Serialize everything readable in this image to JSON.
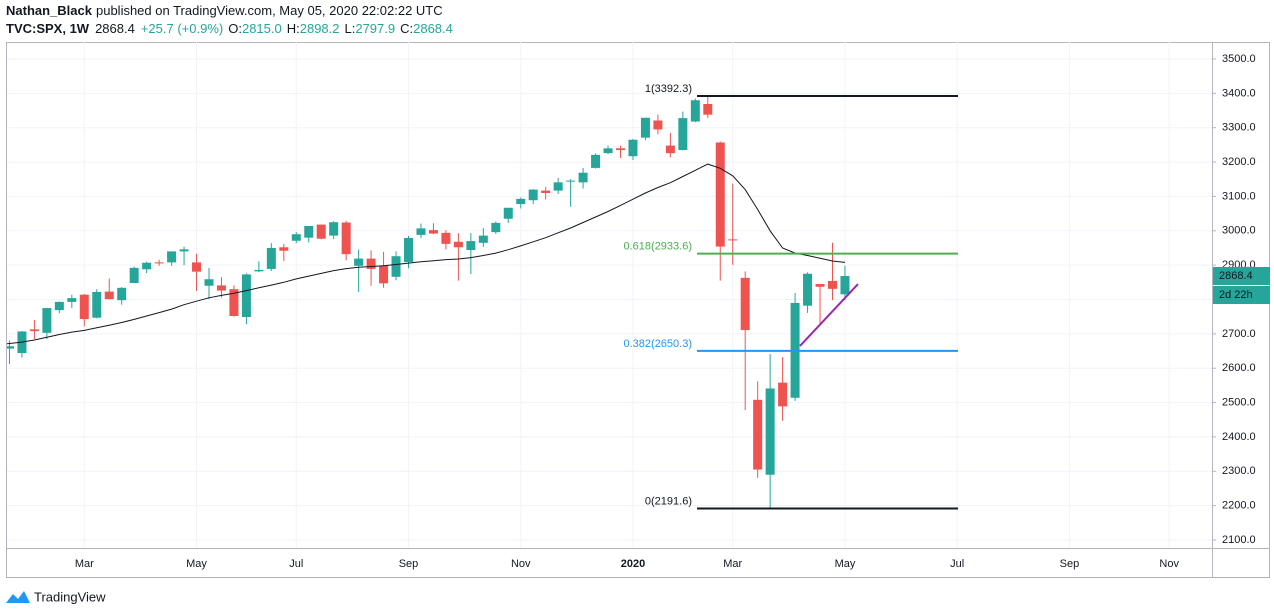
{
  "header": {
    "author": "Nathan_Black",
    "published": "published on TradingView.com, May 05, 2020 22:02:22 UTC",
    "symbol": "TVC:SPX, 1W",
    "last": "2868.4",
    "change": "+25.7 (+0.9%)",
    "ohlc": [
      {
        "key": "O:",
        "value": "2815.0"
      },
      {
        "key": "H:",
        "value": "2898.2"
      },
      {
        "key": "L:",
        "value": "2797.9"
      },
      {
        "key": "C:",
        "value": "2868.4"
      }
    ]
  },
  "chart_data": {
    "type": "candlestick",
    "categories": [
      null,
      null,
      null,
      null,
      null,
      null,
      null,
      "Mar",
      null,
      null,
      null,
      null,
      null,
      null,
      null,
      null,
      "May",
      null,
      null,
      null,
      null,
      null,
      null,
      null,
      "Jul",
      null,
      null,
      null,
      null,
      null,
      null,
      null,
      null,
      "Sep",
      null,
      null,
      null,
      null,
      null,
      null,
      null,
      null,
      "Nov",
      null,
      null,
      null,
      null,
      null,
      null,
      null,
      null,
      "2020",
      null,
      null,
      null,
      null,
      null,
      null,
      null,
      "Mar",
      null,
      null,
      null,
      null,
      null,
      null,
      null,
      null,
      "May",
      null,
      null,
      null,
      null,
      null,
      null,
      null,
      null,
      "Jul",
      null,
      null,
      null,
      null,
      null,
      null,
      null,
      null,
      "Sep",
      null,
      null,
      null,
      null,
      null,
      null,
      null,
      "Nov",
      null,
      null,
      null
    ],
    "open": [
      2582,
      2657,
      2644,
      2713,
      2703,
      2769,
      2793,
      2814,
      2747,
      2823,
      2798,
      2848,
      2888,
      2908,
      2908,
      2940,
      2908,
      2840,
      2841,
      2830,
      2749,
      2882,
      2889,
      2952,
      2971,
      2980,
      3018,
      2986,
      3024,
      2898,
      2919,
      2899,
      2866,
      2909,
      2988,
      3002,
      2994,
      2968,
      2944,
      2965,
      2996,
      3035,
      3078,
      3089,
      3117,
      3117,
      3144,
      3141,
      3183,
      3226,
      3240,
      3217,
      3271,
      3321,
      3248,
      3235,
      3318,
      3369,
      3257,
      2975,
      2863,
      2508,
      2290,
      2558,
      2514,
      2782,
      2845,
      2854,
      2815,
      null,
      null,
      null,
      null,
      null,
      null,
      null,
      null,
      null,
      null,
      null,
      null,
      null,
      null,
      null,
      null,
      null,
      null,
      null,
      null,
      null,
      null,
      null,
      null,
      null,
      null,
      null,
      null,
      null
    ],
    "high": [
      2675,
      2681,
      2708,
      2740,
      2775,
      2794,
      2814,
      2816,
      2830,
      2861,
      2836,
      2896,
      2910,
      2916,
      2940,
      2954,
      2933,
      2892,
      2865,
      2841,
      2876,
      2911,
      2964,
      2962,
      2996,
      3014,
      3018,
      3028,
      3029,
      2945,
      2943,
      2939,
      2940,
      2985,
      3021,
      3022,
      3002,
      2993,
      2993,
      3008,
      3027,
      3066,
      3097,
      3121,
      3128,
      3154,
      3150,
      3183,
      3225,
      3248,
      3247,
      3267,
      3329,
      3338,
      3285,
      3347,
      3385,
      3393,
      3260,
      3137,
      2882,
      2562,
      2641,
      2632,
      2819,
      2879,
      2845,
      2965,
      2898.2,
      null,
      null,
      null,
      null,
      null,
      null,
      null,
      null,
      null,
      null,
      null,
      null,
      null,
      null,
      null,
      null,
      null,
      null,
      null,
      null,
      null,
      null,
      null,
      null,
      null,
      null,
      null,
      null,
      null
    ],
    "low": [
      2570,
      2612,
      2631,
      2685,
      2685,
      2760,
      2775,
      2722,
      2745,
      2800,
      2785,
      2848,
      2877,
      2898,
      2898,
      2900,
      2825,
      2801,
      2805,
      2750,
      2728,
      2880,
      2883,
      2912,
      2964,
      2966,
      2975,
      2976,
      2914,
      2822,
      2840,
      2834,
      2856,
      2891,
      2979,
      2990,
      2946,
      2855,
      2874,
      2953,
      2991,
      3023,
      3065,
      3078,
      3091,
      3107,
      3070,
      3123,
      3181,
      3223,
      3212,
      3206,
      3264,
      3281,
      3214,
      3234,
      3316,
      3328,
      2855,
      2901,
      2478,
      2281,
      2192,
      2447,
      2505,
      2761,
      2727,
      2798,
      2797.9,
      null,
      null,
      null,
      null,
      null,
      null,
      null,
      null,
      null,
      null,
      null,
      null,
      null,
      null,
      null,
      null,
      null,
      null,
      null,
      null,
      null,
      null,
      null,
      null,
      null,
      null,
      null,
      null,
      null
    ],
    "close": [
      2671,
      2664,
      2707,
      2708,
      2775,
      2793,
      2804,
      2743,
      2822,
      2801,
      2834,
      2892,
      2907,
      2905,
      2940,
      2946,
      2881,
      2859,
      2826,
      2752,
      2873,
      2886,
      2950,
      2942,
      2990,
      3014,
      2977,
      3025,
      2932,
      2919,
      2889,
      2847,
      2926,
      2979,
      3007,
      2992,
      2962,
      2952,
      2970,
      2986,
      3023,
      3067,
      3093,
      3120,
      3110,
      3141,
      3146,
      3169,
      3221,
      3240,
      3235,
      3265,
      3329,
      3295,
      3226,
      3328,
      3380,
      3338,
      2954,
      2972,
      2711,
      2305,
      2541,
      2489,
      2790,
      2875,
      2837,
      2831,
      2868.4,
      null,
      null,
      null,
      null,
      null,
      null,
      null,
      null,
      null,
      null,
      null,
      null,
      null,
      null,
      null,
      null,
      null,
      null,
      null,
      null,
      null,
      null,
      null,
      null,
      null,
      null,
      null,
      null,
      null
    ],
    "up_color": "#26a69a",
    "down_color": "#ef5350",
    "ma": {
      "color": "#131722",
      "values": [
        2668,
        2672,
        2676,
        2682,
        2690,
        2698,
        2705,
        2710,
        2718,
        2725,
        2733,
        2742,
        2752,
        2762,
        2772,
        2785,
        2795,
        2805,
        2812,
        2818,
        2826,
        2834,
        2842,
        2850,
        2860,
        2868,
        2876,
        2884,
        2890,
        2894,
        2896,
        2898,
        2902,
        2906,
        2910,
        2913,
        2916,
        2918,
        2922,
        2928,
        2935,
        2945,
        2956,
        2968,
        2980,
        2994,
        3008,
        3024,
        3040,
        3056,
        3074,
        3092,
        3110,
        3126,
        3140,
        3158,
        3176,
        3194,
        3182,
        3160,
        3120,
        3062,
        3000,
        2950,
        2935,
        2928,
        2920,
        2912,
        2908,
        null,
        null,
        null,
        null,
        null,
        null,
        null,
        null,
        null,
        null,
        null,
        null,
        null,
        null,
        null,
        null,
        null,
        null,
        null,
        null,
        null,
        null,
        null,
        null,
        null,
        null,
        null,
        null,
        null
      ]
    },
    "ylim": [
      2076.7,
      3549.5
    ],
    "yticks": [
      {
        "value": 2100,
        "label": "2100.0"
      },
      {
        "value": 2200,
        "label": "2200.0"
      },
      {
        "value": 2300,
        "label": "2300.0"
      },
      {
        "value": 2400,
        "label": "2400.0"
      },
      {
        "value": 2500,
        "label": "2500.0"
      },
      {
        "value": 2600,
        "label": "2600.0"
      },
      {
        "value": 2700,
        "label": "2700.0"
      },
      {
        "value": 2800,
        "label": "2800.0"
      },
      {
        "value": 2900,
        "label": "2900.0"
      },
      {
        "value": 3000,
        "label": "3000.0"
      },
      {
        "value": 3100,
        "label": "3100.0"
      },
      {
        "value": 3200,
        "label": "3200.0"
      },
      {
        "value": 3300,
        "label": "3300.0"
      },
      {
        "value": 3400,
        "label": "3400.0"
      },
      {
        "value": 3500,
        "label": "3500.0"
      }
    ],
    "grid": true,
    "fib_levels": [
      {
        "value": 3392.3,
        "label": "1(3392.3)",
        "color": "#131722"
      },
      {
        "value": 2933.6,
        "label": "0.618(2933.6)",
        "color": "#4caf50"
      },
      {
        "value": 2650.3,
        "label": "0.382(2650.3)",
        "color": "#2196f3"
      },
      {
        "value": 2191.6,
        "label": "0(2191.6)",
        "color": "#131722"
      }
    ],
    "trendline": {
      "color": "#9c27b0",
      "values": [
        2665,
        2845
      ]
    },
    "price_tag": 2868.4,
    "countdown": "2d 22h"
  },
  "footer": {
    "brand": "TradingView"
  }
}
